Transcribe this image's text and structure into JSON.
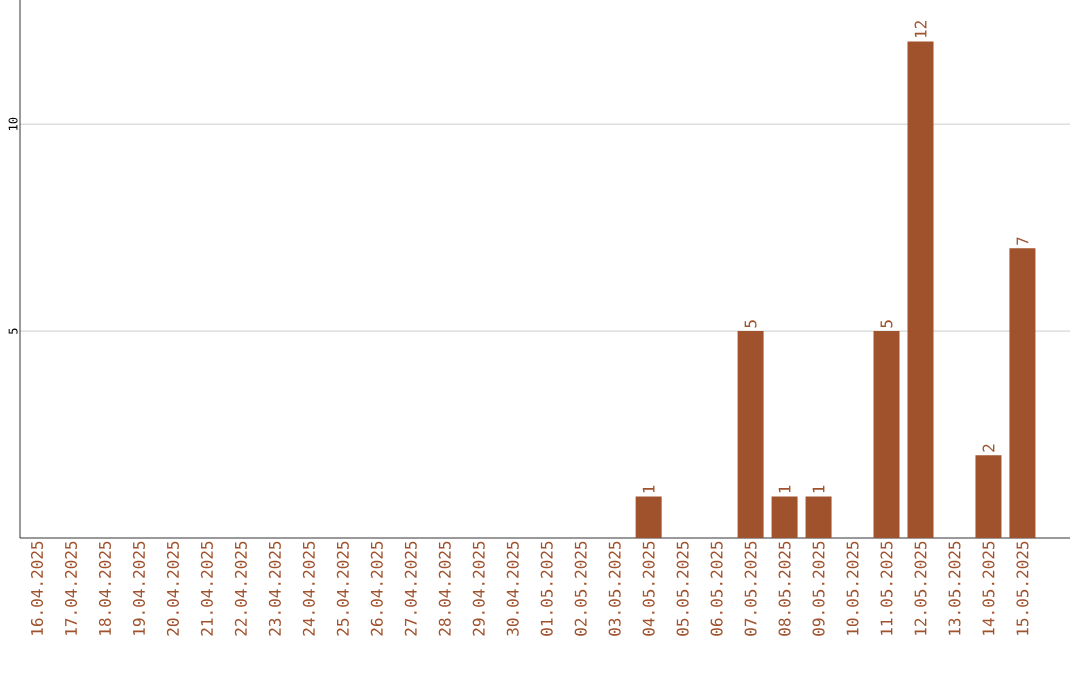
{
  "chart_data": {
    "type": "bar",
    "categories": [
      "16.04.2025",
      "17.04.2025",
      "18.04.2025",
      "19.04.2025",
      "20.04.2025",
      "21.04.2025",
      "22.04.2025",
      "23.04.2025",
      "24.04.2025",
      "25.04.2025",
      "26.04.2025",
      "27.04.2025",
      "28.04.2025",
      "29.04.2025",
      "30.04.2025",
      "01.05.2025",
      "02.05.2025",
      "03.05.2025",
      "04.05.2025",
      "05.05.2025",
      "06.05.2025",
      "07.05.2025",
      "08.05.2025",
      "09.05.2025",
      "10.05.2025",
      "11.05.2025",
      "12.05.2025",
      "13.05.2025",
      "14.05.2025",
      "15.05.2025"
    ],
    "values": [
      0,
      0,
      0,
      0,
      0,
      0,
      0,
      0,
      0,
      0,
      0,
      0,
      0,
      0,
      0,
      0,
      0,
      0,
      1,
      0,
      0,
      5,
      1,
      1,
      0,
      5,
      12,
      0,
      2,
      7
    ],
    "value_labels": [
      null,
      null,
      null,
      null,
      null,
      null,
      null,
      null,
      null,
      null,
      null,
      null,
      null,
      null,
      null,
      null,
      null,
      null,
      "1",
      null,
      null,
      "5",
      "1",
      "1",
      null,
      "5",
      "12",
      null,
      "2",
      "7"
    ],
    "color": "#a0522d",
    "ylim": [
      0,
      13
    ],
    "yticks": [
      5,
      10
    ],
    "grid": "y"
  }
}
